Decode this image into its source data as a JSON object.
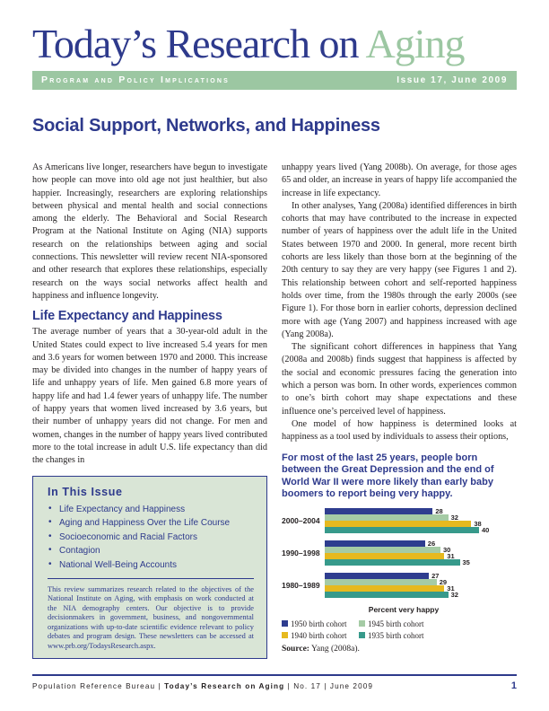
{
  "masthead": {
    "title_main": "Today’s Research on ",
    "title_accent": "Aging",
    "band_left": "Program and Policy Implications",
    "band_right": "Issue 17, June 2009"
  },
  "article": {
    "title": "Social Support, Networks, and Happiness",
    "left_column": {
      "para1": "As Americans live longer, researchers have begun to investigate how people can move into old age not just healthier, but also happier. Increasingly, researchers are exploring relationships between physical and mental health and social connections among the elderly. The Behavioral and Social Research Program at the National Institute on Aging (NIA) supports research on the relationships between aging and social connections. This newsletter will review recent NIA-sponsored and other research that explores these relationships, especially research on the ways social networks affect health and happiness and influence longevity.",
      "section_heading": "Life Expectancy and Happiness",
      "para2": "The average number of years that a 30-year-old adult in the United States could expect to live increased 5.4 years for men and 3.6 years for women between 1970 and 2000. This increase may be divided into changes in the number of happy years of life and unhappy years of life. Men gained 6.8 more years of happy life and had 1.4 fewer years of unhappy life. The number of happy years that women lived increased by 3.6 years, but their number of unhappy years did not change. For men and women, changes in the number of happy years lived contributed more to the total increase in adult U.S. life expectancy than did the changes in"
    },
    "right_column": {
      "para1": "unhappy years lived (Yang 2008b). On average, for those ages 65 and older, an increase in years of happy life accompanied the increase in life expectancy.",
      "para2": "In other analyses, Yang (2008a) identified differences in birth cohorts that may have contributed to the increase in expected number of years of happiness over the adult life in the United States between 1970 and 2000. In general, more recent birth cohorts are less likely than those born at the beginning of the 20th century to say they are very happy (see Figures 1 and 2). This relationship between cohort and self-reported happiness holds over time, from the 1980s through the early 2000s (see Figure 1). For those born in earlier cohorts, depression declined more with age (Yang 2007) and happiness increased with age (Yang 2008a).",
      "para3": "The significant cohort differences in happiness that Yang (2008a and 2008b) finds suggest that happiness is affected by the social and economic pressures facing the generation into which a person was born. In other words, experiences common to one’s birth cohort may shape expectations and these influence one’s perceived level of happiness.",
      "para4": "One model of how happiness is determined looks at happiness as a tool used by individuals to assess their options,"
    }
  },
  "issue_box": {
    "heading": "In This Issue",
    "items": [
      "Life Expectancy and Happiness",
      "Aging and Happiness Over the Life Course",
      "Socioeconomic and Racial Factors",
      "Contagion",
      "National Well-Being Accounts"
    ],
    "note": "This review summarizes research related to the objectives of the National Institute on Aging, with emphasis on work conducted at the NIA demography centers. Our objective is to provide decisionmakers in government, business, and nongovernmental organizations with up-to-date scientific evidence relevant to policy debates and program design. These newsletters can be accessed at www.prb.org/TodaysResearch.aspx."
  },
  "figure": {
    "statement": "For most of the last 25 years, people born between the Great Depression and the end of World War II were more likely than early baby boomers to report being very happy.",
    "source_label": "Source:",
    "source_text": " Yang (2008a)."
  },
  "chart_data": {
    "type": "bar",
    "orientation": "horizontal",
    "categories": [
      "2000–2004",
      "1990–1998",
      "1980–1989"
    ],
    "series": [
      {
        "name": "1950 birth cohort",
        "color": "#2e3d8f",
        "values": [
          28,
          26,
          27
        ]
      },
      {
        "name": "1945 birth cohort",
        "color": "#a5cba5",
        "values": [
          32,
          30,
          29
        ]
      },
      {
        "name": "1940 birth cohort",
        "color": "#e6b91f",
        "values": [
          38,
          31,
          31
        ]
      },
      {
        "name": "1935 birth cohort",
        "color": "#379a8b",
        "values": [
          40,
          35,
          32
        ]
      }
    ],
    "xlabel": "Percent very happy",
    "xlim": [
      0,
      44
    ],
    "grid": false,
    "legend_position": "bottom",
    "value_labels": true
  },
  "footer": {
    "left_normal1": "Population Reference Bureau | ",
    "left_bold": "Today’s Research on Aging",
    "left_normal2": " | No. 17 | June 2009",
    "page_number": "1"
  },
  "colors": {
    "brand_navy": "#2e3a8c",
    "brand_green": "#9cc7a2",
    "issue_box_bg": "#d9e5d6",
    "body_text": "#231f20"
  }
}
